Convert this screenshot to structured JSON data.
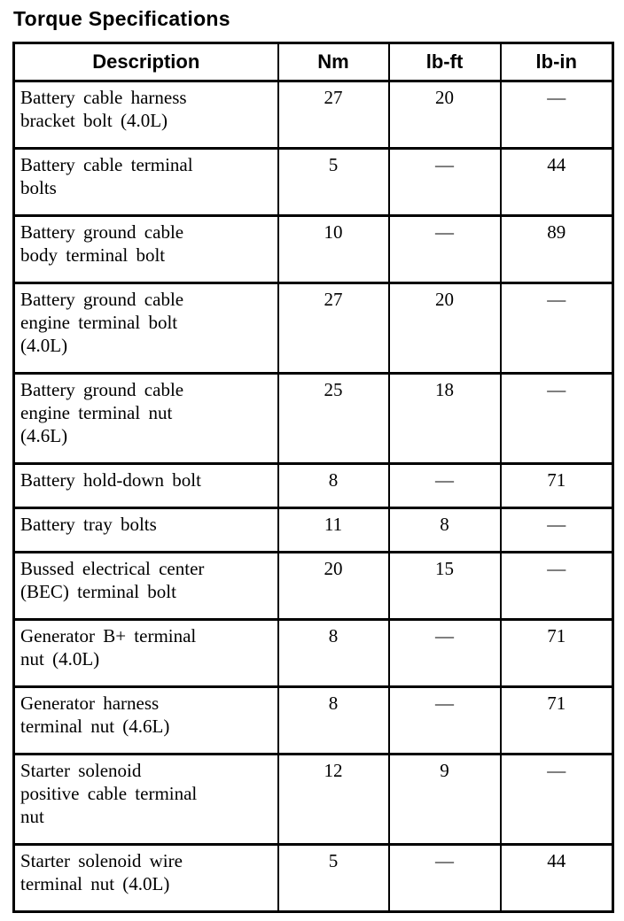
{
  "page": {
    "title": "Torque Specifications"
  },
  "table": {
    "headers": {
      "description": "Description",
      "nm": "Nm",
      "lb_ft": "lb-ft",
      "lb_in": "lb-in"
    },
    "rows": [
      {
        "description": "Battery cable harness\nbracket bolt (4.0L)",
        "nm": "27",
        "lb_ft": "20",
        "lb_in": "—"
      },
      {
        "description": "Battery cable terminal\nbolts",
        "nm": "5",
        "lb_ft": "—",
        "lb_in": "44"
      },
      {
        "description": "Battery ground cable\nbody terminal bolt",
        "nm": "10",
        "lb_ft": "—",
        "lb_in": "89"
      },
      {
        "description": "Battery ground cable\nengine terminal bolt\n(4.0L)",
        "nm": "27",
        "lb_ft": "20",
        "lb_in": "—"
      },
      {
        "description": "Battery ground cable\nengine terminal nut\n(4.6L)",
        "nm": "25",
        "lb_ft": "18",
        "lb_in": "—"
      },
      {
        "description": "Battery hold-down bolt",
        "nm": "8",
        "lb_ft": "—",
        "lb_in": "71"
      },
      {
        "description": "Battery tray bolts",
        "nm": "11",
        "lb_ft": "8",
        "lb_in": "—"
      },
      {
        "description": "Bussed electrical center\n(BEC) terminal bolt",
        "nm": "20",
        "lb_ft": "15",
        "lb_in": "—"
      },
      {
        "description": "Generator B+ terminal\nnut (4.0L)",
        "nm": "8",
        "lb_ft": "—",
        "lb_in": "71"
      },
      {
        "description": "Generator harness\nterminal nut (4.6L)",
        "nm": "8",
        "lb_ft": "—",
        "lb_in": "71"
      },
      {
        "description": "Starter solenoid\npositive cable terminal\nnut",
        "nm": "12",
        "lb_ft": "9",
        "lb_in": "—"
      },
      {
        "description": "Starter solenoid wire\nterminal nut (4.0L)",
        "nm": "5",
        "lb_ft": "—",
        "lb_in": "44"
      }
    ]
  }
}
